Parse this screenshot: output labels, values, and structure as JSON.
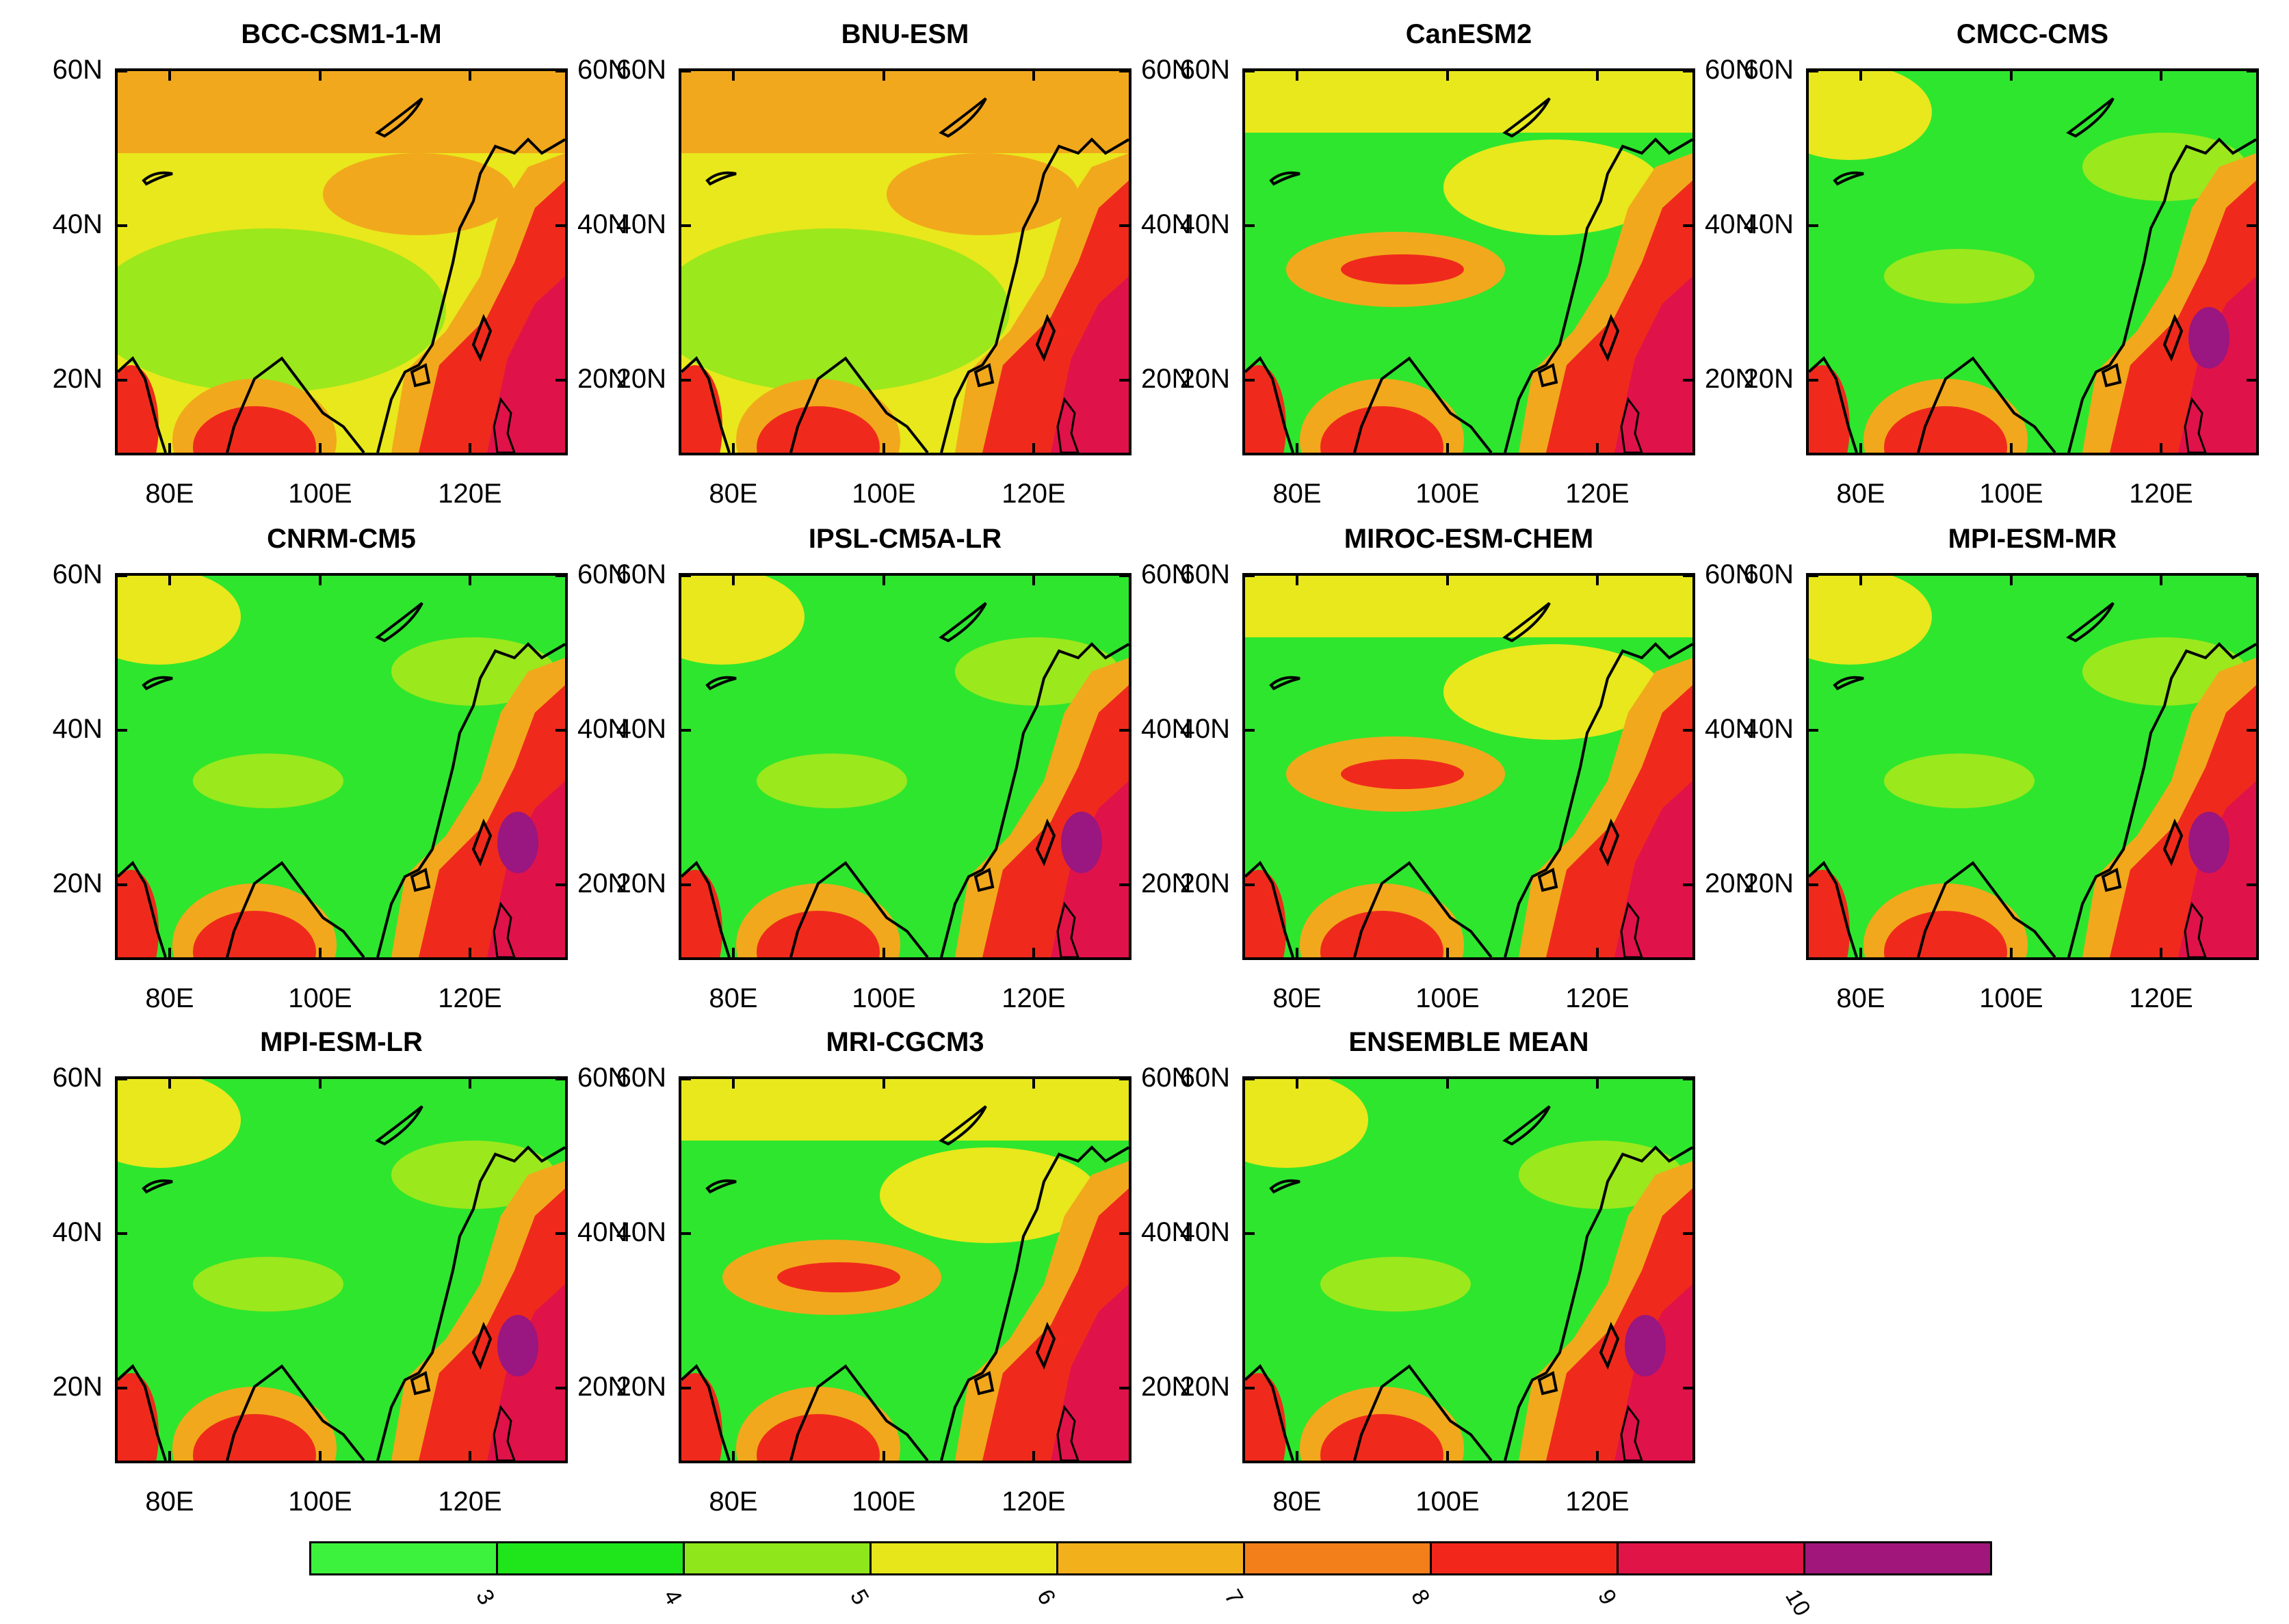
{
  "panels": [
    {
      "title": "BCC-CSM1-1-M",
      "theme": "warm"
    },
    {
      "title": "BNU-ESM",
      "theme": "warm"
    },
    {
      "title": "CanESM2",
      "theme": "mixed"
    },
    {
      "title": "CMCC-CMS",
      "theme": "cool"
    },
    {
      "title": "CNRM-CM5",
      "theme": "cool"
    },
    {
      "title": "IPSL-CM5A-LR",
      "theme": "cool"
    },
    {
      "title": "MIROC-ESM-CHEM",
      "theme": "mixed"
    },
    {
      "title": "MPI-ESM-MR",
      "theme": "cool"
    },
    {
      "title": "MPI-ESM-LR",
      "theme": "cool"
    },
    {
      "title": "MRI-CGCM3",
      "theme": "mixed"
    },
    {
      "title": "ENSEMBLE MEAN",
      "theme": "cool"
    }
  ],
  "lat_labels": [
    "60N",
    "40N",
    "20N"
  ],
  "lon_labels": [
    "80E",
    "100E",
    "120E"
  ],
  "colorbar": {
    "labels": [
      "3",
      "4",
      "5",
      "6",
      "7",
      "8",
      "9",
      "10"
    ],
    "colors": [
      "#3df23d",
      "#1ee61a",
      "#8fe61a",
      "#e6e61a",
      "#f2b01a",
      "#f27f1a",
      "#f2261a",
      "#e01446",
      "#a0167a"
    ]
  },
  "palette": {
    "green": "#2ee62e",
    "green2": "#12dd12",
    "lightgreen": "#9be81c",
    "yellow": "#e8e81c",
    "orange": "#f2a81c",
    "darkorange": "#f27a1c",
    "red": "#ef2a1c",
    "crimson": "#e0124a",
    "purple": "#9a1680",
    "coast": "#000000"
  }
}
